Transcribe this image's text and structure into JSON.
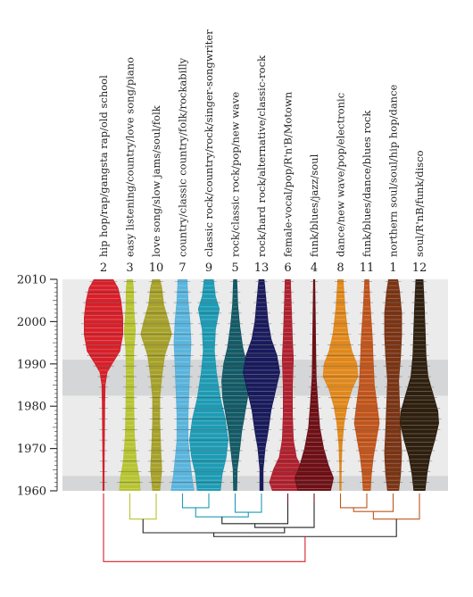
{
  "chart_data": {
    "type": "violin",
    "ylim": [
      1960,
      2010
    ],
    "yticks": [
      1960,
      1970,
      1980,
      1990,
      2000,
      2010
    ],
    "shaded_bands": [
      [
        1960,
        1963.5
      ],
      [
        1982.5,
        1991
      ]
    ],
    "series": [
      {
        "rank": "2",
        "label": "hip hop/rap/gangsta rap/old school",
        "color": "#d7202a",
        "profile": [
          [
            1960,
            0.05
          ],
          [
            1964,
            0.05
          ],
          [
            1970,
            0.06
          ],
          [
            1980,
            0.08
          ],
          [
            1985,
            0.1
          ],
          [
            1988,
            0.2
          ],
          [
            1990,
            0.45
          ],
          [
            1993,
            0.85
          ],
          [
            1997,
            1.0
          ],
          [
            2001,
            1.0
          ],
          [
            2005,
            0.9
          ],
          [
            2008,
            0.75
          ],
          [
            2010,
            0.5
          ]
        ]
      },
      {
        "rank": "3",
        "label": "easy listening/country/love song/piano",
        "color": "#b7c432",
        "profile": [
          [
            1960,
            0.55
          ],
          [
            1963,
            0.5
          ],
          [
            1967,
            0.35
          ],
          [
            1973,
            0.25
          ],
          [
            1980,
            0.22
          ],
          [
            1988,
            0.2
          ],
          [
            1993,
            0.22
          ],
          [
            1998,
            0.3
          ],
          [
            2003,
            0.22
          ],
          [
            2008,
            0.2
          ],
          [
            2010,
            0.15
          ]
        ]
      },
      {
        "rank": "10",
        "label": "love song/slow jams/soul/folk",
        "color": "#a6a12a",
        "profile": [
          [
            1960,
            0.2
          ],
          [
            1965,
            0.3
          ],
          [
            1970,
            0.25
          ],
          [
            1976,
            0.2
          ],
          [
            1982,
            0.2
          ],
          [
            1987,
            0.3
          ],
          [
            1992,
            0.45
          ],
          [
            1997,
            0.8
          ],
          [
            2000,
            0.65
          ],
          [
            2004,
            0.4
          ],
          [
            2008,
            0.3
          ],
          [
            2010,
            0.2
          ]
        ]
      },
      {
        "rank": "7",
        "label": "country/classic country/folk/rockabilly",
        "color": "#5ab4dc",
        "profile": [
          [
            1960,
            0.6
          ],
          [
            1963,
            0.5
          ],
          [
            1967,
            0.4
          ],
          [
            1972,
            0.3
          ],
          [
            1978,
            0.3
          ],
          [
            1984,
            0.35
          ],
          [
            1990,
            0.4
          ],
          [
            1995,
            0.45
          ],
          [
            2000,
            0.4
          ],
          [
            2005,
            0.3
          ],
          [
            2010,
            0.25
          ]
        ]
      },
      {
        "rank": "9",
        "label": "classic rock/country/rock/singer-songwriter",
        "color": "#1e9bb4",
        "profile": [
          [
            1960,
            0.6
          ],
          [
            1964,
            0.7
          ],
          [
            1968,
            0.9
          ],
          [
            1972,
            1.0
          ],
          [
            1977,
            0.85
          ],
          [
            1982,
            0.6
          ],
          [
            1988,
            0.4
          ],
          [
            1993,
            0.3
          ],
          [
            1998,
            0.35
          ],
          [
            2003,
            0.55
          ],
          [
            2006,
            0.35
          ],
          [
            2010,
            0.25
          ]
        ]
      },
      {
        "rank": "5",
        "label": "rock/classic rock/pop/new wave",
        "color": "#135a66",
        "profile": [
          [
            1960,
            0.1
          ],
          [
            1965,
            0.12
          ],
          [
            1970,
            0.25
          ],
          [
            1974,
            0.35
          ],
          [
            1978,
            0.5
          ],
          [
            1982,
            0.65
          ],
          [
            1986,
            0.7
          ],
          [
            1990,
            0.6
          ],
          [
            1994,
            0.4
          ],
          [
            1999,
            0.25
          ],
          [
            2004,
            0.15
          ],
          [
            2010,
            0.1
          ]
        ]
      },
      {
        "rank": "13",
        "label": "rock/hard rock/alternative/classic-rock",
        "color": "#191a5c",
        "profile": [
          [
            1960,
            0.1
          ],
          [
            1965,
            0.1
          ],
          [
            1970,
            0.2
          ],
          [
            1974,
            0.35
          ],
          [
            1979,
            0.5
          ],
          [
            1983,
            0.7
          ],
          [
            1988,
            0.95
          ],
          [
            1992,
            0.8
          ],
          [
            1996,
            0.5
          ],
          [
            2000,
            0.35
          ],
          [
            2005,
            0.25
          ],
          [
            2010,
            0.15
          ]
        ]
      },
      {
        "rank": "6",
        "label": "female-vocal/pop/R'n'B/Motown",
        "color": "#b0202e",
        "profile": [
          [
            1960,
            0.8
          ],
          [
            1962,
            0.95
          ],
          [
            1965,
            0.75
          ],
          [
            1968,
            0.45
          ],
          [
            1972,
            0.3
          ],
          [
            1978,
            0.25
          ],
          [
            1985,
            0.25
          ],
          [
            1991,
            0.3
          ],
          [
            1996,
            0.25
          ],
          [
            2003,
            0.2
          ],
          [
            2010,
            0.15
          ]
        ]
      },
      {
        "rank": "4",
        "label": "funk/blues/jazz/soul",
        "color": "#6e0f15",
        "profile": [
          [
            1960,
            0.85
          ],
          [
            1963,
            1.0
          ],
          [
            1966,
            0.75
          ],
          [
            1970,
            0.5
          ],
          [
            1975,
            0.3
          ],
          [
            1981,
            0.2
          ],
          [
            1987,
            0.12
          ],
          [
            1993,
            0.1
          ],
          [
            2000,
            0.08
          ],
          [
            2010,
            0.05
          ]
        ]
      },
      {
        "rank": "8",
        "label": "dance/new wave/pop/electronic",
        "color": "#e0881c",
        "profile": [
          [
            1960,
            0.05
          ],
          [
            1966,
            0.06
          ],
          [
            1971,
            0.1
          ],
          [
            1976,
            0.2
          ],
          [
            1980,
            0.35
          ],
          [
            1984,
            0.6
          ],
          [
            1987,
            0.9
          ],
          [
            1990,
            0.85
          ],
          [
            1993,
            0.6
          ],
          [
            1997,
            0.4
          ],
          [
            2003,
            0.25
          ],
          [
            2010,
            0.15
          ]
        ]
      },
      {
        "rank": "11",
        "label": "funk/blues/dance/blues rock",
        "color": "#c0551c",
        "profile": [
          [
            1960,
            0.2
          ],
          [
            1964,
            0.25
          ],
          [
            1968,
            0.35
          ],
          [
            1972,
            0.5
          ],
          [
            1976,
            0.65
          ],
          [
            1980,
            0.55
          ],
          [
            1985,
            0.4
          ],
          [
            1990,
            0.35
          ],
          [
            1996,
            0.3
          ],
          [
            2003,
            0.2
          ],
          [
            2010,
            0.12
          ]
        ]
      },
      {
        "rank": "1",
        "label": "northern soul/soul/hip hop/dance",
        "color": "#7a3414",
        "profile": [
          [
            1960,
            0.3
          ],
          [
            1964,
            0.4
          ],
          [
            1969,
            0.45
          ],
          [
            1974,
            0.4
          ],
          [
            1980,
            0.35
          ],
          [
            1986,
            0.3
          ],
          [
            1992,
            0.4
          ],
          [
            1997,
            0.45
          ],
          [
            2002,
            0.45
          ],
          [
            2007,
            0.35
          ],
          [
            2010,
            0.25
          ]
        ]
      },
      {
        "rank": "12",
        "label": "soul/R'nB/funk/disco",
        "color": "#2e1f0e",
        "profile": [
          [
            1960,
            0.3
          ],
          [
            1964,
            0.4
          ],
          [
            1968,
            0.55
          ],
          [
            1972,
            0.8
          ],
          [
            1976,
            1.0
          ],
          [
            1979,
            0.95
          ],
          [
            1983,
            0.7
          ],
          [
            1987,
            0.45
          ],
          [
            1992,
            0.35
          ],
          [
            1999,
            0.3
          ],
          [
            2005,
            0.25
          ],
          [
            2010,
            0.2
          ]
        ]
      }
    ],
    "dendrogram": {
      "merges": [
        {
          "a": 1,
          "b": 2,
          "height": 0.22,
          "color": "#b7c432"
        },
        {
          "a": 3,
          "b": 4,
          "height": 0.07,
          "color": "#1e9bb4"
        },
        {
          "a": 5,
          "b": 6,
          "height": 0.13,
          "color": "#1e9bb4"
        },
        {
          "a": "m1",
          "b": "m2",
          "height": 0.19,
          "color": "#1e9bb4"
        },
        {
          "a": 9,
          "b": 10,
          "height": 0.07,
          "color": "#c0551c"
        },
        {
          "a": "m4",
          "b": 11,
          "height": 0.12,
          "color": "#c0551c"
        },
        {
          "a": "m5",
          "b": 12,
          "height": 0.22,
          "color": "#c0551c"
        },
        {
          "a": "m3",
          "b": 7,
          "height": 0.28,
          "color": "#222222"
        },
        {
          "a": "m7",
          "b": 8,
          "height": 0.33,
          "color": "#222222"
        },
        {
          "a": "m0",
          "b": "m8",
          "height": 0.4,
          "color": "#222222"
        },
        {
          "a": "m9",
          "b": "m6",
          "height": 0.45,
          "color": "#222222"
        },
        {
          "a": 0,
          "b": "m10",
          "height": 0.78,
          "color": "#d7202a"
        }
      ],
      "leaf_colors": [
        "#d7202a",
        "#b7c432",
        "#b7c432",
        "#1e9bb4",
        "#1e9bb4",
        "#1e9bb4",
        "#1e9bb4",
        "#6e0f15",
        "#6e0f15",
        "#c0551c",
        "#c0551c",
        "#c0551c",
        "#c0551c"
      ]
    }
  }
}
